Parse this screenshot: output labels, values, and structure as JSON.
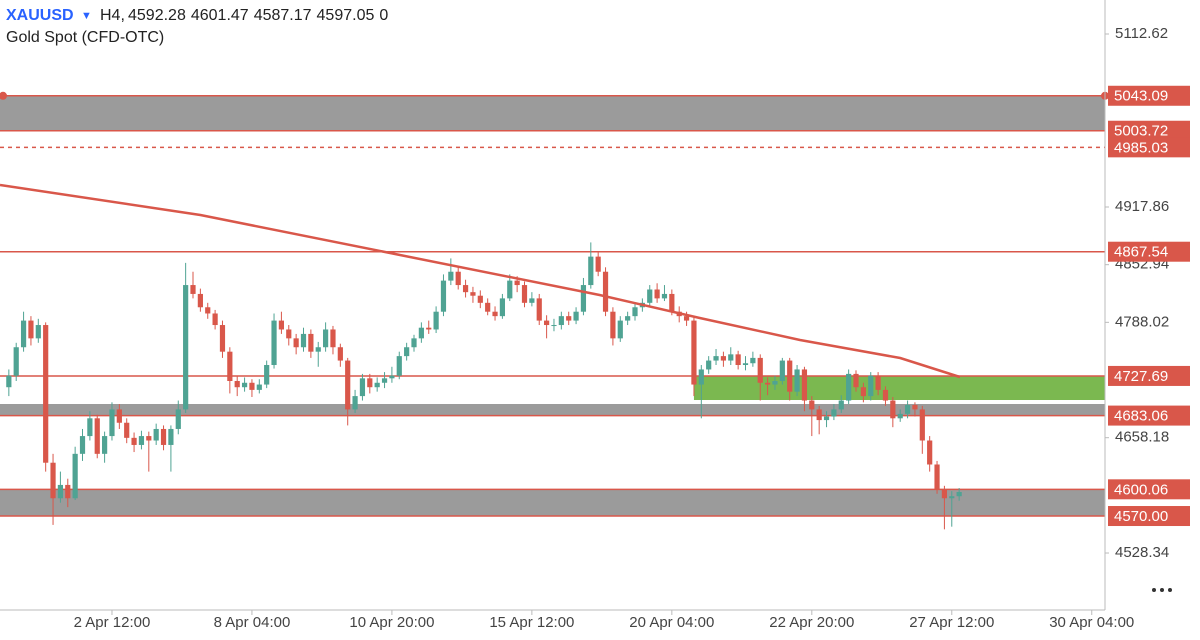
{
  "chart_data": {
    "type": "candlestick",
    "symbol": "XAUUSD",
    "interval": "H4,",
    "quote": [
      4592.28,
      4601.47,
      4587.17,
      4597.05,
      0
    ],
    "subtitle": "Gold  Spot (CFD-OTC)",
    "up_color": "#4fa393",
    "down_color": "#d9574a",
    "ylim": [
      4464.2,
      5150.9
    ],
    "yticks": [
      5112.62,
      4917.86,
      4852.94,
      4788.02,
      4658.18,
      4528.34
    ],
    "xlim": [
      -1.2,
      148.8
    ],
    "xticks": [
      {
        "value": 14,
        "label": "2 Apr 12:00"
      },
      {
        "value": 33,
        "label": "8 Apr 04:00"
      },
      {
        "value": 52,
        "label": "10 Apr 20:00"
      },
      {
        "value": 71,
        "label": "15 Apr 12:00"
      },
      {
        "value": 90,
        "label": "20 Apr 04:00"
      },
      {
        "value": 109,
        "label": "22 Apr 20:00"
      },
      {
        "value": 128,
        "label": "27 Apr 12:00"
      },
      {
        "value": 147,
        "label": "30 Apr 04:00"
      }
    ],
    "zones": [
      {
        "from": 5003.72,
        "to": 5043.09,
        "color": "#9b9b9b"
      },
      {
        "from": 4683.06,
        "to": 4696.1,
        "color": "#9b9b9b"
      },
      {
        "from": 4570,
        "to": 4600.06,
        "color": "#9b9b9b"
      },
      {
        "from": 4700.6,
        "to": 4727.69,
        "color": "#7bb850",
        "start": 93
      }
    ],
    "levels": [
      {
        "price": 5043.09,
        "style": "solid"
      },
      {
        "price": 5003.72,
        "style": "solid"
      },
      {
        "price": 4985.03,
        "style": "dashed"
      },
      {
        "price": 4867.54,
        "style": "solid"
      },
      {
        "price": 4727.69,
        "style": "solid"
      },
      {
        "price": 4683.06,
        "style": "solid"
      },
      {
        "price": 4600.06,
        "style": "solid"
      },
      {
        "price": {
          "value": 4570,
          "label": "4570.00"
        },
        "style": "solid"
      }
    ],
    "ma": {
      "color": "#d9574a",
      "x": [
        -1.2,
        26,
        53.1,
        80.2,
        93.8,
        107.4,
        121,
        129.1
      ],
      "values": [
        4942.6,
        4908.9,
        4863.8,
        4818.8,
        4792.9,
        4768.1,
        4747.9,
        4726.5
      ]
    },
    "ohlc": [
      [
        4715,
        4735,
        4705,
        4728
      ],
      [
        4728,
        4765,
        4722,
        4760
      ],
      [
        4760,
        4800,
        4755,
        4790
      ],
      [
        4790,
        4795,
        4762,
        4770
      ],
      [
        4770,
        4792,
        4765,
        4785
      ],
      [
        4785,
        4788,
        4620,
        4630
      ],
      [
        4630,
        4640,
        4560,
        4590
      ],
      [
        4590,
        4620,
        4585,
        4605
      ],
      [
        4605,
        4612,
        4580,
        4590
      ],
      [
        4590,
        4648,
        4588,
        4640
      ],
      [
        4640,
        4668,
        4632,
        4660
      ],
      [
        4660,
        4688,
        4655,
        4680
      ],
      [
        4680,
        4684,
        4635,
        4640
      ],
      [
        4640,
        4665,
        4630,
        4660
      ],
      [
        4660,
        4698,
        4655,
        4690
      ],
      [
        4690,
        4696,
        4668,
        4675
      ],
      [
        4675,
        4680,
        4652,
        4658
      ],
      [
        4658,
        4664,
        4642,
        4650
      ],
      [
        4650,
        4666,
        4645,
        4660
      ],
      [
        4660,
        4665,
        4620,
        4655
      ],
      [
        4655,
        4674,
        4650,
        4668
      ],
      [
        4668,
        4672,
        4644,
        4650
      ],
      [
        4650,
        4672,
        4620,
        4668
      ],
      [
        4668,
        4700,
        4662,
        4690
      ],
      [
        4690,
        4855,
        4686,
        4830
      ],
      [
        4830,
        4845,
        4815,
        4820
      ],
      [
        4820,
        4826,
        4800,
        4805
      ],
      [
        4805,
        4810,
        4792,
        4798
      ],
      [
        4798,
        4802,
        4780,
        4785
      ],
      [
        4785,
        4790,
        4748,
        4755
      ],
      [
        4755,
        4760,
        4708,
        4722
      ],
      [
        4722,
        4728,
        4705,
        4715
      ],
      [
        4715,
        4726,
        4710,
        4720
      ],
      [
        4720,
        4724,
        4704,
        4712
      ],
      [
        4712,
        4724,
        4708,
        4718
      ],
      [
        4718,
        4745,
        4714,
        4740
      ],
      [
        4740,
        4798,
        4736,
        4790
      ],
      [
        4790,
        4800,
        4775,
        4780
      ],
      [
        4780,
        4785,
        4762,
        4770
      ],
      [
        4770,
        4775,
        4752,
        4760
      ],
      [
        4760,
        4782,
        4755,
        4775
      ],
      [
        4775,
        4780,
        4748,
        4755
      ],
      [
        4755,
        4766,
        4738,
        4760
      ],
      [
        4760,
        4788,
        4755,
        4780
      ],
      [
        4780,
        4784,
        4752,
        4760
      ],
      [
        4760,
        4764,
        4738,
        4745
      ],
      [
        4745,
        4748,
        4672,
        4690
      ],
      [
        4690,
        4712,
        4686,
        4705
      ],
      [
        4705,
        4730,
        4700,
        4725
      ],
      [
        4725,
        4730,
        4708,
        4715
      ],
      [
        4715,
        4726,
        4710,
        4720
      ],
      [
        4720,
        4732,
        4714,
        4725
      ],
      [
        4725,
        4738,
        4720,
        4728
      ],
      [
        4728,
        4755,
        4724,
        4750
      ],
      [
        4750,
        4765,
        4745,
        4760
      ],
      [
        4760,
        4774,
        4755,
        4770
      ],
      [
        4770,
        4788,
        4765,
        4782
      ],
      [
        4782,
        4790,
        4775,
        4780
      ],
      [
        4780,
        4806,
        4776,
        4800
      ],
      [
        4800,
        4842,
        4795,
        4835
      ],
      [
        4835,
        4860,
        4830,
        4845
      ],
      [
        4845,
        4850,
        4825,
        4830
      ],
      [
        4830,
        4836,
        4816,
        4822
      ],
      [
        4822,
        4828,
        4810,
        4818
      ],
      [
        4818,
        4824,
        4804,
        4810
      ],
      [
        4810,
        4815,
        4796,
        4800
      ],
      [
        4800,
        4806,
        4790,
        4795
      ],
      [
        4795,
        4820,
        4792,
        4815
      ],
      [
        4815,
        4842,
        4812,
        4835
      ],
      [
        4835,
        4840,
        4822,
        4830
      ],
      [
        4830,
        4834,
        4805,
        4810
      ],
      [
        4810,
        4822,
        4806,
        4815
      ],
      [
        4815,
        4820,
        4785,
        4790
      ],
      [
        4790,
        4796,
        4770,
        4785
      ],
      [
        4785,
        4792,
        4778,
        4785
      ],
      [
        4785,
        4800,
        4780,
        4795
      ],
      [
        4795,
        4800,
        4785,
        4790
      ],
      [
        4790,
        4805,
        4786,
        4800
      ],
      [
        4800,
        4838,
        4796,
        4830
      ],
      [
        4830,
        4878,
        4826,
        4862
      ],
      [
        4862,
        4868,
        4840,
        4845
      ],
      [
        4845,
        4850,
        4795,
        4800
      ],
      [
        4800,
        4805,
        4762,
        4770
      ],
      [
        4770,
        4795,
        4766,
        4790
      ],
      [
        4790,
        4800,
        4785,
        4795
      ],
      [
        4795,
        4810,
        4790,
        4805
      ],
      [
        4805,
        4815,
        4800,
        4810
      ],
      [
        4810,
        4830,
        4806,
        4825
      ],
      [
        4825,
        4832,
        4810,
        4815
      ],
      [
        4815,
        4830,
        4812,
        4820
      ],
      [
        4820,
        4825,
        4796,
        4800
      ],
      [
        4800,
        4806,
        4788,
        4795
      ],
      [
        4795,
        4800,
        4784,
        4790
      ],
      [
        4790,
        4795,
        4705,
        4718
      ],
      [
        4718,
        4740,
        4680,
        4735
      ],
      [
        4735,
        4750,
        4730,
        4745
      ],
      [
        4745,
        4758,
        4740,
        4750
      ],
      [
        4750,
        4755,
        4738,
        4745
      ],
      [
        4745,
        4760,
        4740,
        4752
      ],
      [
        4752,
        4756,
        4735,
        4740
      ],
      [
        4740,
        4750,
        4734,
        4742
      ],
      [
        4742,
        4755,
        4738,
        4748
      ],
      [
        4748,
        4752,
        4700,
        4720
      ],
      [
        4720,
        4726,
        4706,
        4718
      ],
      [
        4718,
        4728,
        4712,
        4722
      ],
      [
        4722,
        4748,
        4718,
        4745
      ],
      [
        4745,
        4748,
        4700,
        4710
      ],
      [
        4710,
        4740,
        4705,
        4735
      ],
      [
        4735,
        4738,
        4688,
        4700
      ],
      [
        4700,
        4705,
        4660,
        4690
      ],
      [
        4690,
        4694,
        4662,
        4678
      ],
      [
        4678,
        4688,
        4670,
        4682
      ],
      [
        4682,
        4696,
        4678,
        4690
      ],
      [
        4690,
        4706,
        4686,
        4700
      ],
      [
        4700,
        4735,
        4696,
        4730
      ],
      [
        4730,
        4734,
        4710,
        4715
      ],
      [
        4715,
        4720,
        4698,
        4705
      ],
      [
        4705,
        4732,
        4700,
        4728
      ],
      [
        4728,
        4732,
        4706,
        4712
      ],
      [
        4712,
        4716,
        4694,
        4700
      ],
      [
        4700,
        4704,
        4670,
        4680
      ],
      [
        4680,
        4690,
        4676,
        4685
      ],
      [
        4685,
        4700,
        4680,
        4695
      ],
      [
        4695,
        4698,
        4682,
        4690
      ],
      [
        4690,
        4694,
        4640,
        4655
      ],
      [
        4655,
        4660,
        4620,
        4628
      ],
      [
        4628,
        4632,
        4595,
        4600
      ],
      [
        4600,
        4604,
        4555,
        4590
      ],
      [
        4590,
        4598,
        4558,
        4592.28
      ],
      [
        4592.28,
        4601.47,
        4587.17,
        4597.05
      ]
    ]
  }
}
